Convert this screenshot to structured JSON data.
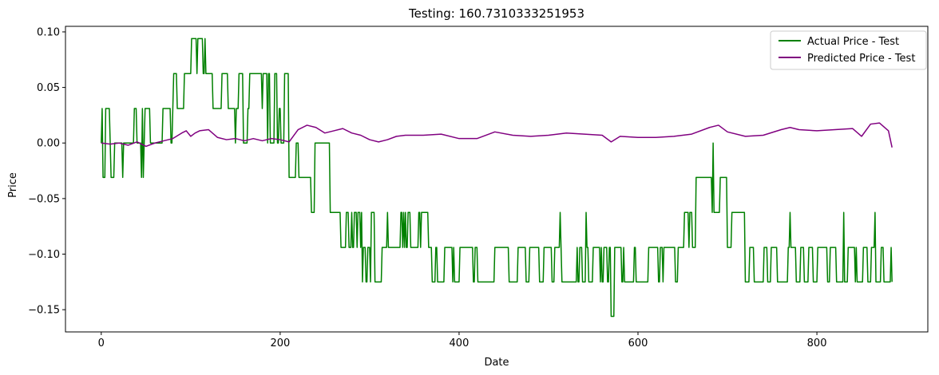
{
  "chart_data": {
    "type": "line",
    "title": "Testing: 160.7310333251953",
    "xlabel": "Date",
    "ylabel": "Price",
    "xlim": [
      -40,
      924
    ],
    "ylim": [
      -0.17,
      0.105
    ],
    "xticks": [
      0,
      200,
      400,
      600,
      800
    ],
    "xtick_labels": [
      "0",
      "200",
      "400",
      "600",
      "800"
    ],
    "yticks": [
      -0.15,
      -0.1,
      -0.05,
      0.0,
      0.05,
      0.1
    ],
    "ytick_labels": [
      "−0.15",
      "−0.10",
      "−0.05",
      "0.00",
      "0.05",
      "0.10"
    ],
    "grid": false,
    "legend_position": "top-right",
    "series": [
      {
        "name": "Actual Price - Test",
        "color": "#008000",
        "regimes": [
          {
            "start": 0,
            "end": 2,
            "levels": [
              0.0,
              0.031
            ]
          },
          {
            "start": 2,
            "end": 68,
            "levels": [
              -0.031,
              0.0,
              0.031
            ]
          },
          {
            "start": 68,
            "end": 80,
            "levels": [
              0.0,
              0.031
            ]
          },
          {
            "start": 80,
            "end": 95,
            "levels": [
              0.031,
              0.0625
            ]
          },
          {
            "start": 95,
            "end": 125,
            "levels": [
              0.0625,
              0.094
            ]
          },
          {
            "start": 125,
            "end": 150,
            "levels": [
              0.031,
              0.0625
            ]
          },
          {
            "start": 150,
            "end": 190,
            "levels": [
              0.0,
              0.031,
              0.0625
            ]
          },
          {
            "start": 190,
            "end": 210,
            "levels": [
              0.0,
              0.031,
              0.0625
            ]
          },
          {
            "start": 210,
            "end": 235,
            "levels": [
              -0.031,
              0.0
            ]
          },
          {
            "start": 235,
            "end": 260,
            "levels": [
              -0.0625,
              -0.031,
              0.0
            ]
          },
          {
            "start": 260,
            "end": 290,
            "levels": [
              -0.094,
              -0.0625
            ]
          },
          {
            "start": 290,
            "end": 320,
            "levels": [
              -0.125,
              -0.094,
              -0.0625
            ]
          },
          {
            "start": 320,
            "end": 370,
            "levels": [
              -0.094,
              -0.0625
            ]
          },
          {
            "start": 370,
            "end": 570,
            "levels": [
              -0.125,
              -0.094
            ]
          },
          {
            "start": 570,
            "end": 574,
            "levels": [
              -0.156
            ]
          },
          {
            "start": 574,
            "end": 650,
            "levels": [
              -0.125,
              -0.094
            ]
          },
          {
            "start": 650,
            "end": 665,
            "levels": [
              -0.094,
              -0.0625
            ]
          },
          {
            "start": 665,
            "end": 700,
            "levels": [
              -0.0625,
              -0.031
            ]
          },
          {
            "start": 700,
            "end": 720,
            "levels": [
              -0.094,
              -0.0625
            ]
          },
          {
            "start": 720,
            "end": 884,
            "levels": [
              -0.125,
              -0.094
            ]
          }
        ],
        "spikes": [
          {
            "x": 684,
            "y": 0.0
          },
          {
            "x": 542,
            "y": -0.0625
          },
          {
            "x": 513,
            "y": -0.0625
          },
          {
            "x": 770,
            "y": -0.0625
          },
          {
            "x": 830,
            "y": -0.0625
          },
          {
            "x": 865,
            "y": -0.0625
          }
        ]
      },
      {
        "name": "Predicted Price - Test",
        "color": "#800080",
        "x": [
          0,
          10,
          20,
          30,
          40,
          50,
          60,
          70,
          80,
          90,
          95,
          100,
          105,
          110,
          120,
          130,
          140,
          150,
          160,
          170,
          180,
          190,
          200,
          210,
          220,
          230,
          240,
          250,
          260,
          270,
          280,
          290,
          300,
          310,
          320,
          330,
          340,
          360,
          380,
          400,
          420,
          440,
          460,
          480,
          500,
          520,
          540,
          560,
          570,
          580,
          600,
          620,
          640,
          660,
          680,
          690,
          700,
          720,
          740,
          760,
          770,
          780,
          800,
          820,
          840,
          850,
          860,
          870,
          880,
          884
        ],
        "y": [
          0.0,
          -0.001,
          0.0,
          -0.002,
          0.001,
          -0.003,
          0.0,
          0.002,
          0.004,
          0.009,
          0.011,
          0.006,
          0.009,
          0.011,
          0.012,
          0.005,
          0.003,
          0.004,
          0.002,
          0.004,
          0.002,
          0.004,
          0.003,
          0.001,
          0.012,
          0.016,
          0.014,
          0.009,
          0.011,
          0.013,
          0.009,
          0.007,
          0.003,
          0.001,
          0.003,
          0.006,
          0.007,
          0.007,
          0.008,
          0.004,
          0.004,
          0.01,
          0.007,
          0.006,
          0.007,
          0.009,
          0.008,
          0.007,
          0.001,
          0.006,
          0.005,
          0.005,
          0.006,
          0.008,
          0.014,
          0.016,
          0.01,
          0.006,
          0.007,
          0.012,
          0.014,
          0.012,
          0.011,
          0.012,
          0.013,
          0.006,
          0.017,
          0.018,
          0.011,
          -0.004
        ]
      }
    ]
  }
}
